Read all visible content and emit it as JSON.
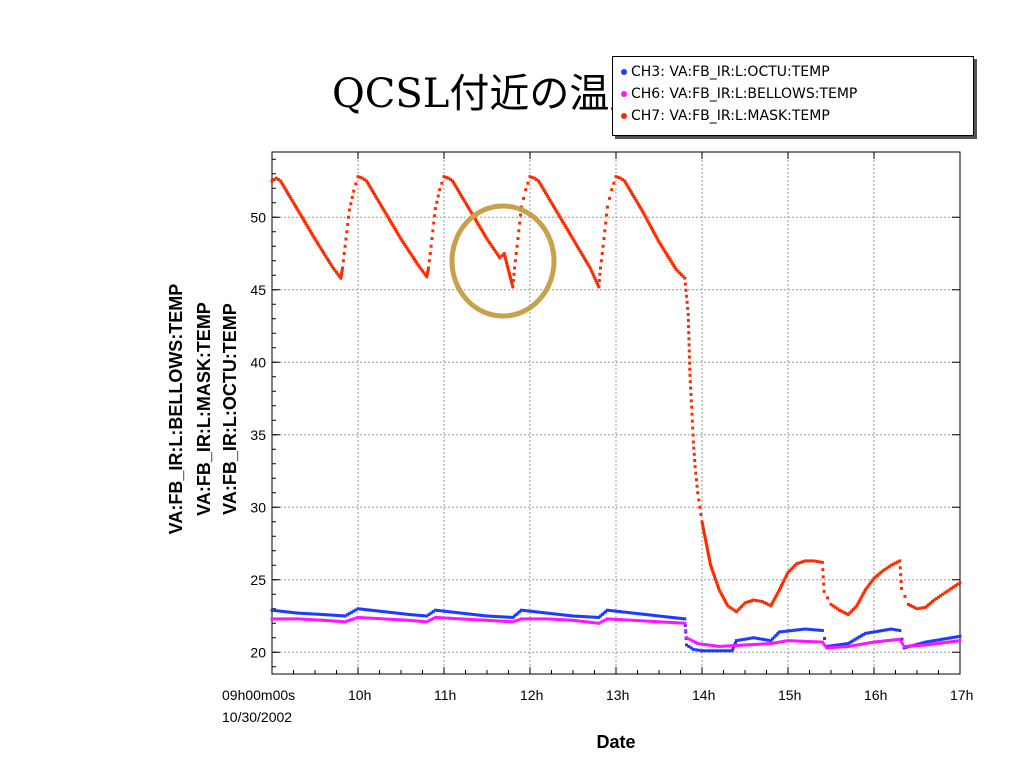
{
  "slide": {
    "title": "QCSL付近の温度"
  },
  "chart_data": {
    "type": "scatter",
    "xlabel": "Date",
    "x_start_date": "10/30/2002",
    "xlim": [
      9,
      17
    ],
    "x_ticks": [
      {
        "x": 9,
        "label": "09h00m00s"
      },
      {
        "x": 10,
        "label": "10h"
      },
      {
        "x": 11,
        "label": "11h"
      },
      {
        "x": 12,
        "label": "12h"
      },
      {
        "x": 13,
        "label": "13h"
      },
      {
        "x": 14,
        "label": "14h"
      },
      {
        "x": 15,
        "label": "15h"
      },
      {
        "x": 16,
        "label": "16h"
      },
      {
        "x": 17,
        "label": "17h"
      }
    ],
    "ylabels": [
      "VA:FB_IR:L:BELLOWS:TEMP",
      "VA:FB_IR:L:MASK:TEMP",
      "VA:FB_IR:L:OCTU:TEMP"
    ],
    "ylim": [
      18.5,
      54.5
    ],
    "y_ticks": [
      20,
      25,
      30,
      35,
      40,
      45,
      50
    ],
    "grid": true,
    "legend_position": "top-right",
    "series": [
      {
        "name": "CH3: VA:FB_IR:L:OCTU:TEMP",
        "color": "#1f3bff",
        "x": [
          9.0,
          9.3,
          9.6,
          9.85,
          10.0,
          10.3,
          10.6,
          10.8,
          10.9,
          11.2,
          11.5,
          11.8,
          11.9,
          12.2,
          12.5,
          12.8,
          12.9,
          13.2,
          13.5,
          13.8,
          13.82,
          13.9,
          14.0,
          14.2,
          14.35,
          14.4,
          14.6,
          14.8,
          14.9,
          15.2,
          15.4,
          15.45,
          15.7,
          15.9,
          16.2,
          16.3,
          16.35,
          16.6,
          17.0
        ],
        "y": [
          22.9,
          22.7,
          22.6,
          22.5,
          23.0,
          22.8,
          22.6,
          22.5,
          22.9,
          22.7,
          22.5,
          22.4,
          22.9,
          22.7,
          22.5,
          22.4,
          22.9,
          22.7,
          22.5,
          22.3,
          20.5,
          20.2,
          20.1,
          20.1,
          20.1,
          20.8,
          21.0,
          20.8,
          21.4,
          21.6,
          21.5,
          20.4,
          20.6,
          21.3,
          21.6,
          21.5,
          20.3,
          20.7,
          21.1
        ]
      },
      {
        "name": "CH6: VA:FB_IR:L:BELLOWS:TEMP",
        "color": "#ff14ff",
        "x": [
          9.0,
          9.3,
          9.6,
          9.85,
          10.0,
          10.3,
          10.6,
          10.8,
          10.9,
          11.2,
          11.5,
          11.8,
          11.9,
          12.2,
          12.5,
          12.8,
          12.9,
          13.2,
          13.5,
          13.8,
          13.82,
          13.95,
          14.2,
          14.5,
          14.8,
          15.0,
          15.4,
          15.45,
          15.7,
          16.0,
          16.3,
          16.35,
          16.6,
          17.0
        ],
        "y": [
          22.3,
          22.3,
          22.2,
          22.1,
          22.4,
          22.3,
          22.2,
          22.1,
          22.4,
          22.3,
          22.2,
          22.1,
          22.3,
          22.3,
          22.2,
          22.0,
          22.3,
          22.2,
          22.1,
          22.0,
          21.0,
          20.6,
          20.4,
          20.5,
          20.6,
          20.8,
          20.7,
          20.3,
          20.4,
          20.7,
          20.9,
          20.4,
          20.5,
          20.8
        ]
      },
      {
        "name": "CH7: VA:FB_IR:L:MASK:TEMP",
        "color": "#ff2a00",
        "x": [
          9.0,
          9.05,
          9.1,
          9.3,
          9.5,
          9.7,
          9.8,
          9.82,
          9.85,
          9.88,
          9.9,
          9.95,
          10.0,
          10.05,
          10.1,
          10.3,
          10.5,
          10.7,
          10.8,
          10.82,
          10.85,
          10.88,
          10.9,
          10.95,
          11.0,
          11.05,
          11.1,
          11.3,
          11.5,
          11.65,
          11.7,
          11.8,
          11.82,
          11.85,
          11.88,
          11.9,
          11.95,
          12.0,
          12.05,
          12.1,
          12.3,
          12.5,
          12.7,
          12.8,
          12.82,
          12.85,
          12.88,
          12.9,
          12.95,
          13.0,
          13.05,
          13.1,
          13.3,
          13.5,
          13.7,
          13.8,
          13.84,
          13.86,
          13.88,
          13.9,
          13.92,
          13.95,
          14.0,
          14.1,
          14.2,
          14.3,
          14.4,
          14.5,
          14.6,
          14.7,
          14.8,
          14.9,
          15.0,
          15.1,
          15.2,
          15.3,
          15.4,
          15.42,
          15.5,
          15.6,
          15.7,
          15.8,
          15.9,
          16.0,
          16.1,
          16.2,
          16.3,
          16.32,
          16.4,
          16.5,
          16.6,
          16.7,
          16.8,
          16.9,
          17.0
        ],
        "y": [
          52.5,
          52.7,
          52.5,
          50.5,
          48.5,
          46.6,
          45.8,
          46.5,
          48.0,
          49.5,
          50.5,
          51.8,
          52.8,
          52.7,
          52.5,
          50.5,
          48.5,
          46.7,
          45.9,
          46.5,
          48.0,
          49.6,
          50.6,
          51.9,
          52.8,
          52.7,
          52.5,
          50.5,
          48.5,
          47.2,
          47.5,
          45.2,
          46.5,
          48.0,
          49.6,
          50.7,
          51.9,
          52.8,
          52.7,
          52.5,
          50.5,
          48.5,
          46.5,
          45.2,
          46.5,
          48.0,
          49.6,
          50.7,
          51.9,
          52.8,
          52.7,
          52.5,
          50.5,
          48.3,
          46.4,
          45.8,
          43.3,
          39.1,
          36.9,
          34.5,
          32.8,
          31.0,
          29.0,
          26.0,
          24.3,
          23.2,
          22.8,
          23.4,
          23.6,
          23.5,
          23.2,
          24.3,
          25.5,
          26.1,
          26.3,
          26.3,
          26.2,
          24.2,
          23.3,
          22.9,
          22.6,
          23.2,
          24.3,
          25.1,
          25.6,
          26.0,
          26.3,
          24.4,
          23.3,
          23.0,
          23.1,
          23.6,
          24.0,
          24.4,
          24.8
        ]
      }
    ]
  }
}
